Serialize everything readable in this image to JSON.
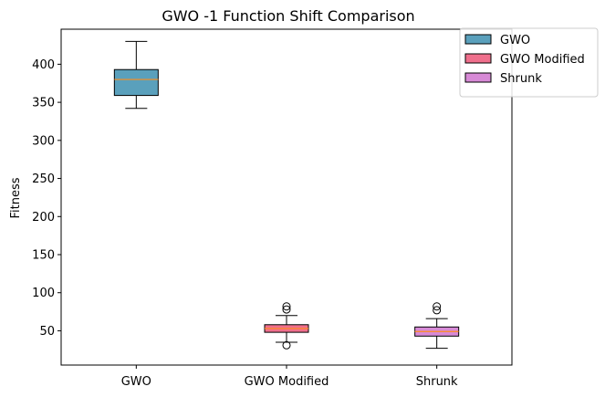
{
  "chart_data": {
    "type": "box",
    "title": "GWO -1 Function Shift Comparison",
    "xlabel": "",
    "ylabel": "Fitness",
    "ylim": [
      5,
      446
    ],
    "yticks": [
      50,
      100,
      150,
      200,
      250,
      300,
      350,
      400
    ],
    "grid": false,
    "legend_position": "top-right",
    "categories": [
      "GWO",
      "GWO Modified",
      "Shrunk"
    ],
    "series": [
      {
        "name": "GWO",
        "color": "#5aa0bc",
        "whisker_low": 342,
        "q1": 359,
        "median": 380,
        "q3": 393,
        "whisker_high": 430,
        "outliers": []
      },
      {
        "name": "GWO Modified",
        "color": "#ef6f8c",
        "whisker_low": 35,
        "q1": 48,
        "median": 53,
        "q3": 58,
        "whisker_high": 70,
        "outliers": [
          31,
          78,
          82
        ]
      },
      {
        "name": "Shrunk",
        "color": "#d78ad6",
        "whisker_low": 27,
        "q1": 43,
        "median": 49,
        "q3": 55,
        "whisker_high": 66,
        "outliers": [
          77,
          82
        ]
      }
    ],
    "median_color": "#ff8c1a"
  }
}
